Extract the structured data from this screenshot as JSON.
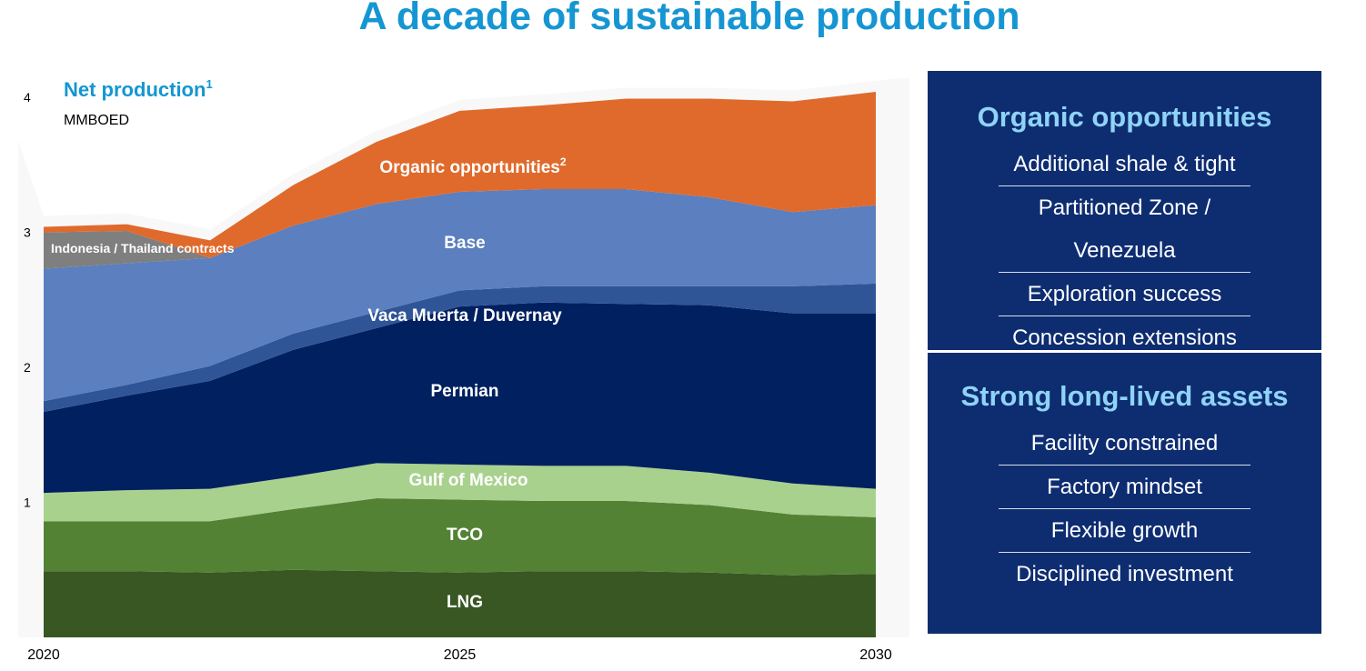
{
  "title": "A decade of sustainable production",
  "chart_data": {
    "type": "area",
    "stacked": true,
    "title": "Net production",
    "title_superscript": "1",
    "unit": "MMBOED",
    "x": [
      2020,
      2021,
      2022,
      2023,
      2024,
      2025,
      2026,
      2027,
      2028,
      2029,
      2030
    ],
    "ylim": [
      0,
      4
    ],
    "y_ticks": [
      1,
      2,
      3,
      4
    ],
    "x_ticks": [
      "2020",
      "2025",
      "2030"
    ],
    "series": [
      {
        "name": "LNG",
        "label": "LNG",
        "color": "#385723",
        "values": [
          0.49,
          0.49,
          0.48,
          0.5,
          0.49,
          0.48,
          0.49,
          0.49,
          0.48,
          0.46,
          0.47
        ]
      },
      {
        "name": "TCO",
        "label": "TCO",
        "color": "#548235",
        "values": [
          0.37,
          0.37,
          0.38,
          0.45,
          0.54,
          0.54,
          0.52,
          0.52,
          0.5,
          0.45,
          0.42
        ]
      },
      {
        "name": "Gulf of Mexico",
        "label": "Gulf of Mexico",
        "color": "#a9d18e",
        "values": [
          0.21,
          0.23,
          0.24,
          0.24,
          0.26,
          0.26,
          0.26,
          0.26,
          0.24,
          0.23,
          0.21
        ]
      },
      {
        "name": "Permian",
        "label": "Permian",
        "color": "#002060",
        "values": [
          0.6,
          0.7,
          0.8,
          0.94,
          1.0,
          1.17,
          1.21,
          1.2,
          1.24,
          1.26,
          1.3
        ]
      },
      {
        "name": "Vaca Muerta / Duvernay",
        "label": "Vaca Muerta / Duvernay",
        "color": "#2f5597",
        "values": [
          0.08,
          0.08,
          0.11,
          0.12,
          0.12,
          0.12,
          0.12,
          0.13,
          0.14,
          0.2,
          0.22
        ]
      },
      {
        "name": "Base",
        "label": "Base",
        "color": "#5b7fbf",
        "values": [
          0.98,
          0.9,
          0.8,
          0.8,
          0.8,
          0.73,
          0.72,
          0.72,
          0.66,
          0.55,
          0.58
        ]
      },
      {
        "name": "Indonesia / Thailand contracts",
        "label": "Indonesia /  Thailand contracts",
        "color": "#7f7f7f",
        "values": [
          0.27,
          0.24,
          0.0,
          0.0,
          0.0,
          0.0,
          0.0,
          0.0,
          0.0,
          0.0,
          0.0
        ]
      },
      {
        "name": "Organic opportunities",
        "label": "Organic opportunities",
        "label_superscript": "2",
        "color": "#e06a2c",
        "values": [
          0.04,
          0.05,
          0.13,
          0.3,
          0.46,
          0.6,
          0.62,
          0.67,
          0.73,
          0.82,
          0.84
        ]
      }
    ]
  },
  "panels": {
    "organic": {
      "heading": "Organic opportunities",
      "items": [
        "Additional shale & tight",
        "Partitioned Zone / Venezuela",
        "Exploration success",
        "Concession extensions"
      ]
    },
    "assets": {
      "heading": "Strong long-lived assets",
      "items": [
        "Facility constrained",
        "Factory mindset",
        "Flexible growth",
        "Disciplined investment"
      ]
    }
  }
}
